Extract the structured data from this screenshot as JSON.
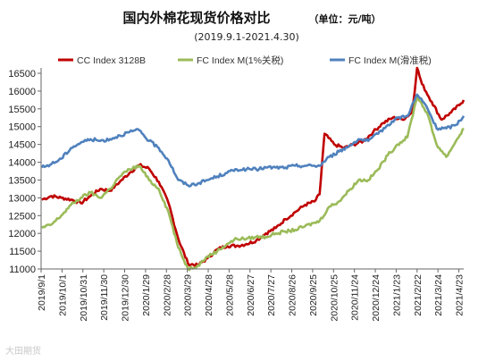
{
  "watermark": "大田期货",
  "chart_data": {
    "type": "line",
    "title": "国内外棉花现货价格对比",
    "unit_note": "（单位：元/吨）",
    "subtitle": "(2019.9.1-2021.4.30)",
    "xlabel": "",
    "ylabel": "",
    "ylim": [
      11000,
      16500
    ],
    "yticks": [
      11000,
      11500,
      12000,
      12500,
      13000,
      13500,
      14000,
      14500,
      15000,
      15500,
      16000,
      16500
    ],
    "x_tick_labels": [
      "2019/9/1",
      "2019/10/1",
      "2019/10/31",
      "2019/11/30",
      "2019/12/30",
      "2020/1/29",
      "2020/2/28",
      "2020/3/29",
      "2020/4/28",
      "2020/5/28",
      "2020/6/27",
      "2020/7/27",
      "2020/8/26",
      "2020/9/25",
      "2020/10/25",
      "2020/11/24",
      "2020/12/24",
      "2021/1/23",
      "2021/2/22",
      "2021/3/24",
      "2021/4/23"
    ],
    "grid": false,
    "legend_position": "top",
    "series": [
      {
        "name": "CC Index 3128B",
        "color": "#c00000",
        "points": [
          [
            "2019-09-02",
            12950
          ],
          [
            "2019-09-16",
            13050
          ],
          [
            "2019-09-30",
            13000
          ],
          [
            "2019-10-14",
            12950
          ],
          [
            "2019-10-28",
            12850
          ],
          [
            "2019-11-11",
            13050
          ],
          [
            "2019-11-25",
            13250
          ],
          [
            "2019-12-09",
            13200
          ],
          [
            "2019-12-23",
            13450
          ],
          [
            "2020-01-06",
            13700
          ],
          [
            "2020-01-20",
            13920
          ],
          [
            "2020-02-03",
            13820
          ],
          [
            "2020-02-17",
            13450
          ],
          [
            "2020-03-02",
            12850
          ],
          [
            "2020-03-16",
            11850
          ],
          [
            "2020-03-30",
            11150
          ],
          [
            "2020-04-13",
            11100
          ],
          [
            "2020-04-27",
            11300
          ],
          [
            "2020-05-11",
            11550
          ],
          [
            "2020-05-25",
            11650
          ],
          [
            "2020-06-08",
            11650
          ],
          [
            "2020-06-22",
            11700
          ],
          [
            "2020-07-06",
            11800
          ],
          [
            "2020-07-20",
            12000
          ],
          [
            "2020-08-03",
            12150
          ],
          [
            "2020-08-17",
            12400
          ],
          [
            "2020-08-31",
            12600
          ],
          [
            "2020-09-14",
            12800
          ],
          [
            "2020-09-28",
            12900
          ],
          [
            "2020-10-05",
            13100
          ],
          [
            "2020-10-12",
            14800
          ],
          [
            "2020-10-26",
            14500
          ],
          [
            "2020-11-09",
            14400
          ],
          [
            "2020-11-23",
            14500
          ],
          [
            "2020-12-07",
            14600
          ],
          [
            "2020-12-21",
            14850
          ],
          [
            "2021-01-04",
            15100
          ],
          [
            "2021-01-18",
            15250
          ],
          [
            "2021-02-01",
            15200
          ],
          [
            "2021-02-15",
            15400
          ],
          [
            "2021-02-22",
            16650
          ],
          [
            "2021-03-01",
            16200
          ],
          [
            "2021-03-15",
            15700
          ],
          [
            "2021-03-29",
            15200
          ],
          [
            "2021-04-12",
            15400
          ],
          [
            "2021-04-26",
            15650
          ],
          [
            "2021-04-30",
            15750
          ]
        ]
      },
      {
        "name": "FC Index M(1%关税)",
        "color": "#9bbb59",
        "points": [
          [
            "2019-09-02",
            12150
          ],
          [
            "2019-09-16",
            12250
          ],
          [
            "2019-09-30",
            12500
          ],
          [
            "2019-10-14",
            12800
          ],
          [
            "2019-10-28",
            13000
          ],
          [
            "2019-11-11",
            13150
          ],
          [
            "2019-11-25",
            13000
          ],
          [
            "2019-12-09",
            13250
          ],
          [
            "2019-12-23",
            13600
          ],
          [
            "2020-01-06",
            13800
          ],
          [
            "2020-01-20",
            13900
          ],
          [
            "2020-02-03",
            13500
          ],
          [
            "2020-02-17",
            13250
          ],
          [
            "2020-03-02",
            12600
          ],
          [
            "2020-03-16",
            11600
          ],
          [
            "2020-03-30",
            11000
          ],
          [
            "2020-04-13",
            11100
          ],
          [
            "2020-04-27",
            11350
          ],
          [
            "2020-05-11",
            11500
          ],
          [
            "2020-05-25",
            11700
          ],
          [
            "2020-06-08",
            11850
          ],
          [
            "2020-06-22",
            11850
          ],
          [
            "2020-07-06",
            11900
          ],
          [
            "2020-07-20",
            11900
          ],
          [
            "2020-08-03",
            12000
          ],
          [
            "2020-08-17",
            12050
          ],
          [
            "2020-08-31",
            12100
          ],
          [
            "2020-09-14",
            12200
          ],
          [
            "2020-09-28",
            12300
          ],
          [
            "2020-10-05",
            12350
          ],
          [
            "2020-10-19",
            12750
          ],
          [
            "2020-11-02",
            12900
          ],
          [
            "2020-11-16",
            13200
          ],
          [
            "2020-11-30",
            13500
          ],
          [
            "2020-12-14",
            13500
          ],
          [
            "2020-12-28",
            13800
          ],
          [
            "2021-01-11",
            14200
          ],
          [
            "2021-01-25",
            14500
          ],
          [
            "2021-02-08",
            14700
          ],
          [
            "2021-02-22",
            15850
          ],
          [
            "2021-03-08",
            15400
          ],
          [
            "2021-03-22",
            14500
          ],
          [
            "2021-04-05",
            14150
          ],
          [
            "2021-04-19",
            14600
          ],
          [
            "2021-04-30",
            14950
          ]
        ]
      },
      {
        "name": "FC Index M(滑准税)",
        "color": "#4f81bd",
        "points": [
          [
            "2019-09-02",
            13850
          ],
          [
            "2019-09-16",
            13950
          ],
          [
            "2019-09-30",
            14100
          ],
          [
            "2019-10-14",
            14400
          ],
          [
            "2019-10-28",
            14550
          ],
          [
            "2019-11-11",
            14650
          ],
          [
            "2019-11-25",
            14600
          ],
          [
            "2019-12-09",
            14650
          ],
          [
            "2019-12-23",
            14750
          ],
          [
            "2020-01-06",
            14850
          ],
          [
            "2020-01-20",
            14900
          ],
          [
            "2020-02-03",
            14600
          ],
          [
            "2020-02-17",
            14400
          ],
          [
            "2020-03-02",
            14050
          ],
          [
            "2020-03-16",
            13500
          ],
          [
            "2020-03-30",
            13350
          ],
          [
            "2020-04-13",
            13400
          ],
          [
            "2020-04-27",
            13500
          ],
          [
            "2020-05-11",
            13600
          ],
          [
            "2020-05-25",
            13700
          ],
          [
            "2020-06-08",
            13800
          ],
          [
            "2020-06-22",
            13800
          ],
          [
            "2020-07-06",
            13800
          ],
          [
            "2020-07-20",
            13850
          ],
          [
            "2020-08-03",
            13850
          ],
          [
            "2020-08-17",
            13850
          ],
          [
            "2020-08-31",
            13900
          ],
          [
            "2020-09-14",
            13900
          ],
          [
            "2020-09-28",
            13900
          ],
          [
            "2020-10-05",
            13900
          ],
          [
            "2020-10-19",
            14150
          ],
          [
            "2020-11-02",
            14300
          ],
          [
            "2020-11-16",
            14450
          ],
          [
            "2020-11-30",
            14650
          ],
          [
            "2020-12-14",
            14600
          ],
          [
            "2020-12-28",
            14800
          ],
          [
            "2021-01-11",
            15050
          ],
          [
            "2021-01-25",
            15250
          ],
          [
            "2021-02-08",
            15300
          ],
          [
            "2021-02-22",
            15900
          ],
          [
            "2021-03-08",
            15550
          ],
          [
            "2021-03-22",
            14950
          ],
          [
            "2021-04-05",
            14950
          ],
          [
            "2021-04-19",
            15050
          ],
          [
            "2021-04-30",
            15300
          ]
        ]
      }
    ]
  }
}
